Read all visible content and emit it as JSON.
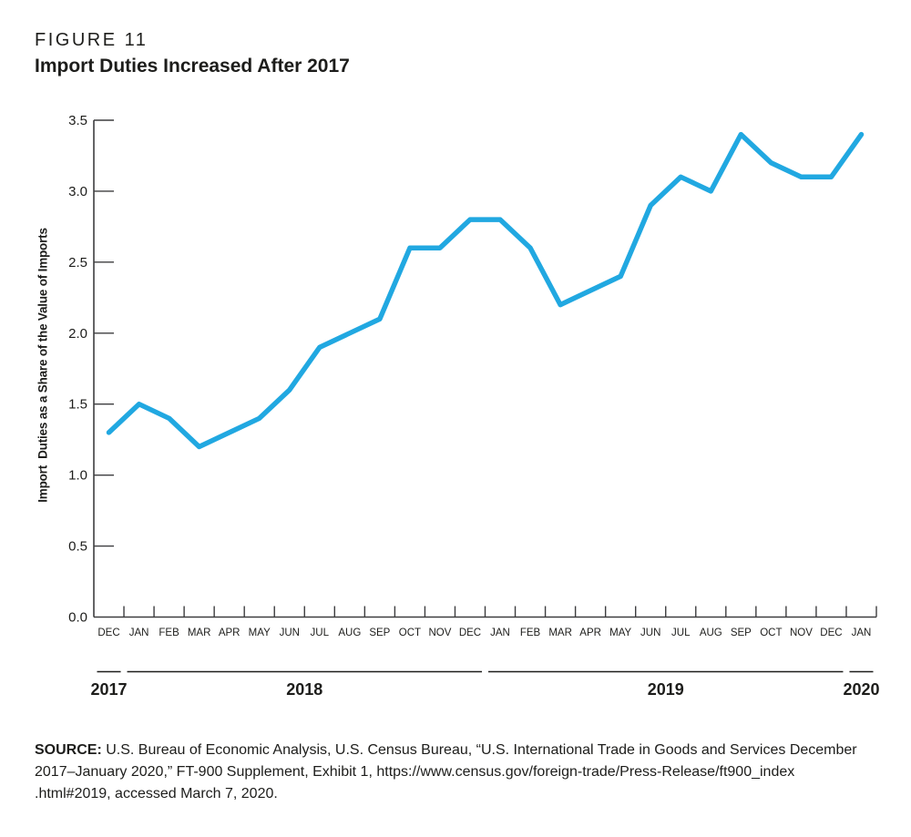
{
  "figure": {
    "label": "FIGURE 11",
    "title": "Import Duties Increased After 2017"
  },
  "chart_data": {
    "type": "line",
    "title": "Import Duties Increased After 2017",
    "xlabel": "",
    "ylabel": "Import  Duties as a Share of the Value of Imports",
    "ylim": [
      0,
      3.5
    ],
    "ytick_labels": [
      "0.0",
      "0.5",
      "1.0",
      "1.5",
      "2.0",
      "2.5",
      "3.0",
      "3.5"
    ],
    "categories": [
      "DEC",
      "JAN",
      "FEB",
      "MAR",
      "APR",
      "MAY",
      "JUN",
      "JUL",
      "AUG",
      "SEP",
      "OCT",
      "NOV",
      "DEC",
      "JAN",
      "FEB",
      "MAR",
      "APR",
      "MAY",
      "JUN",
      "JUL",
      "AUG",
      "SEP",
      "OCT",
      "NOV",
      "DEC",
      "JAN"
    ],
    "values": [
      1.3,
      1.5,
      1.4,
      1.2,
      1.3,
      1.4,
      1.6,
      1.9,
      2.0,
      2.1,
      2.6,
      2.6,
      2.8,
      2.8,
      2.6,
      2.2,
      2.3,
      2.4,
      2.9,
      3.1,
      3.0,
      3.4,
      3.2,
      3.1,
      3.1,
      3.4
    ],
    "year_groups": [
      {
        "label": "2017",
        "start": 0,
        "end": 0
      },
      {
        "label": "2018",
        "start": 1,
        "end": 12
      },
      {
        "label": "2019",
        "start": 13,
        "end": 24
      },
      {
        "label": "2020",
        "start": 25,
        "end": 25
      }
    ],
    "grid": false,
    "legend": null,
    "line_color": "#21A8E1",
    "axis_color": "#3d3d3f"
  },
  "source": {
    "label": "SOURCE:",
    "line1": " U.S. Bureau of Economic Analysis, U.S. Census Bureau, “U.S. International Trade in Goods and Services December",
    "line2": "2017–January 2020,” FT-900 Supplement, Exhibit 1, https://www.census.gov/foreign-trade/Press-Release/ft900_index",
    "line3": ".html#2019, accessed March 7, 2020."
  }
}
